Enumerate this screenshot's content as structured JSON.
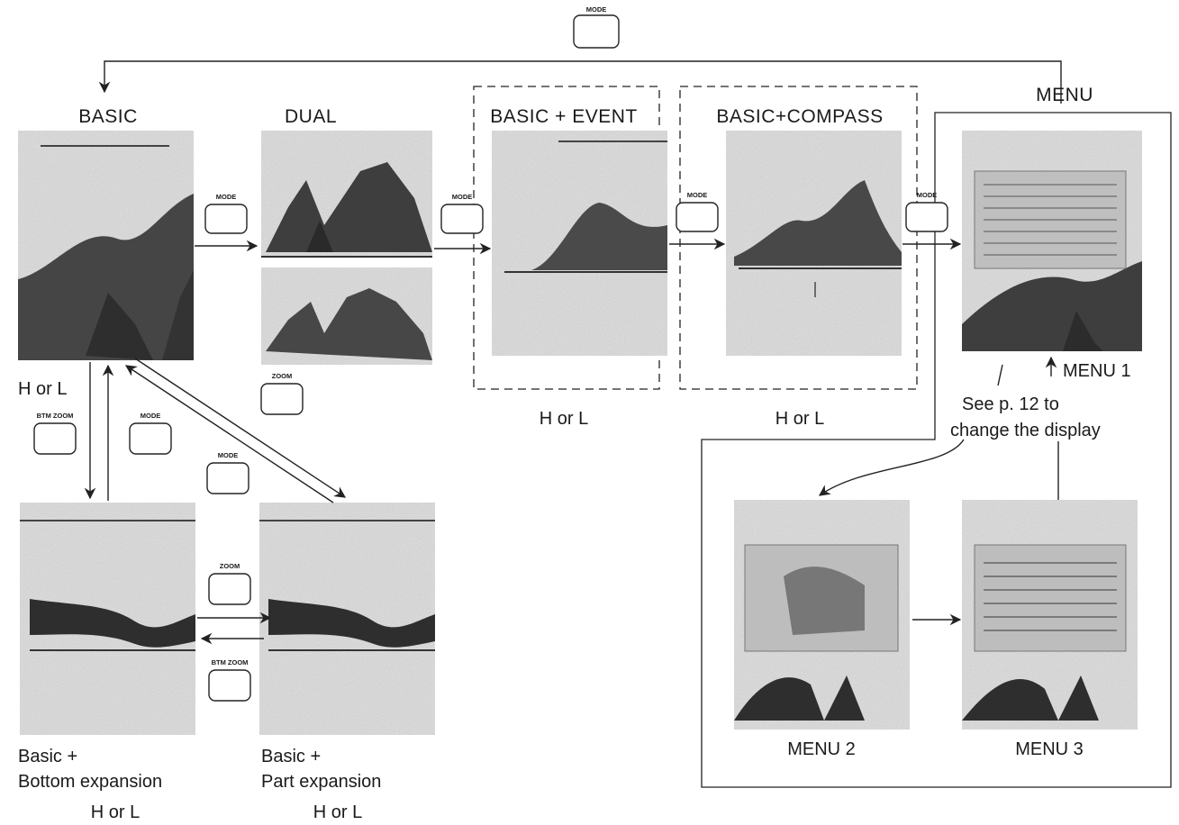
{
  "modes": {
    "basic": "BASIC",
    "dual": "DUAL",
    "basic_event": "BASIC + EVENT",
    "basic_compass": "BASIC+COMPASS",
    "menu": "MENU",
    "menu1": "MENU 1",
    "menu2": "MENU 2",
    "menu3": "MENU 3",
    "bottom_exp_line1": "Basic +",
    "bottom_exp_line2": "Bottom expansion",
    "part_exp_line1": "Basic +",
    "part_exp_line2": "Part expansion"
  },
  "range_label": "H or L",
  "note": {
    "line1": "See p. 12 to",
    "line2": "change the display"
  },
  "keys": {
    "mode": "MODE",
    "zoom": "ZOOM",
    "btm_zoom": "BTM ZOOM"
  },
  "colors": {
    "ink": "#1a1a1a",
    "screen_bg": "#d8d8d8",
    "echo": "#3a3a3a"
  }
}
